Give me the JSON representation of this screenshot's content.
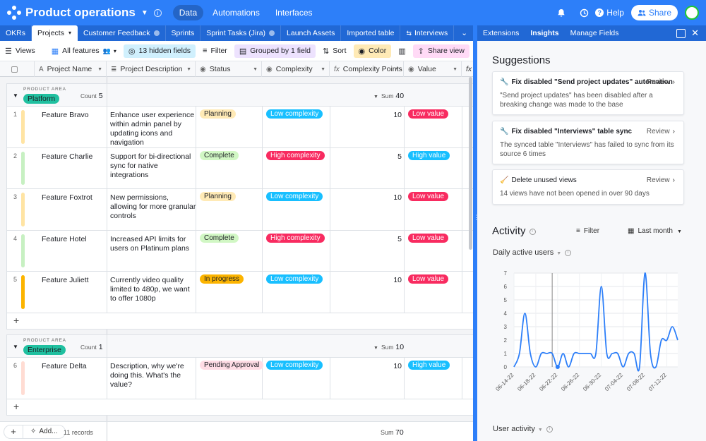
{
  "app": {
    "title": "Product operations",
    "nav": [
      "Data",
      "Automations",
      "Interfaces"
    ],
    "help_label": "Help",
    "share_label": "Share"
  },
  "tabs": [
    "OKRs",
    "Projects",
    "Customer Feedback",
    "Sprints",
    "Sprint Tasks (Jira)",
    "Launch Assets",
    "Imported table",
    "Interviews"
  ],
  "sidebar_tabs": [
    "Extensions",
    "Insights",
    "Manage Fields"
  ],
  "toolbar": {
    "views": "Views",
    "view_name": "All features",
    "hidden": "13 hidden fields",
    "filter": "Filter",
    "grouped": "Grouped by 1 field",
    "sort": "Sort",
    "color": "Color",
    "share_view": "Share view"
  },
  "columns": [
    "Project Name",
    "Project Description",
    "Status",
    "Complexity",
    "Complexity Points",
    "Value"
  ],
  "groups": [
    {
      "label": "PRODUCT AREA",
      "name": "Platform",
      "count_label": "Count",
      "count": "5",
      "sum_label": "Sum",
      "sum": "40",
      "rows": [
        {
          "num": "1",
          "name": "Feature Bravo",
          "desc": "Enhance user experience within admin panel by updating icons and navigation",
          "status": "Planning",
          "complexity": "Low complexity",
          "points": "10",
          "value": "Low value",
          "bar": "#ffe4a3"
        },
        {
          "num": "2",
          "name": "Feature Charlie",
          "desc": "Support for bi-directional sync for native integrations",
          "status": "Complete",
          "complexity": "High complexity",
          "points": "5",
          "value": "High value",
          "bar": "#c7f0c2"
        },
        {
          "num": "3",
          "name": "Feature Foxtrot",
          "desc": "New permissions, allowing for more granular controls",
          "status": "Planning",
          "complexity": "Low complexity",
          "points": "10",
          "value": "Low value",
          "bar": "#ffe4a3"
        },
        {
          "num": "4",
          "name": "Feature Hotel",
          "desc": "Increased API limits for users on Platinum plans",
          "status": "Complete",
          "complexity": "High complexity",
          "points": "5",
          "value": "Low value",
          "bar": "#c7f0c2"
        },
        {
          "num": "5",
          "name": "Feature Juliett",
          "desc": "Currently video quality limited to 480p, we want to offer 1080p",
          "status": "In progress",
          "complexity": "Low complexity",
          "points": "10",
          "value": "Low value",
          "bar": "#fcb400"
        }
      ]
    },
    {
      "label": "PRODUCT AREA",
      "name": "Enterprise",
      "count_label": "Count",
      "count": "1",
      "sum_label": "Sum",
      "sum": "10",
      "rows": [
        {
          "num": "6",
          "name": "Feature Delta",
          "desc": "Description, why we're doing this. What's the value?",
          "status": "Pending Approval",
          "complexity": "Low complexity",
          "points": "10",
          "value": "High value",
          "bar": "#ffdcd3"
        }
      ]
    }
  ],
  "footer": {
    "add_label": "Add...",
    "records": "11 records",
    "sum_label": "Sum",
    "sum": "70"
  },
  "colors": {
    "Planning": "#ffeab6",
    "Complete": "#d1f7c4",
    "In progress": "#fcb400",
    "Pending Approval": "#ffdce5",
    "Low complexity": "#18bfff",
    "High complexity": "#f82b60",
    "Low value": "#f82b60",
    "High value": "#18bfff"
  },
  "suggestions": {
    "title": "Suggestions",
    "items": [
      {
        "title": "Fix disabled \"Send project updates\" automation",
        "action": "Review",
        "body": "\"Send project updates\" has been disabled after a breaking change was made to the base",
        "icon": "wrench-icon"
      },
      {
        "title": "Fix disabled \"Interviews\" table sync",
        "action": "Review",
        "body": "The synced table \"Interviews\" has failed to sync from its source 6 times",
        "icon": "wrench-icon"
      },
      {
        "title": "Delete unused views",
        "action": "Review",
        "body": "14 views have not been opened in over 90 days",
        "icon": "broom-icon"
      }
    ]
  },
  "activity": {
    "title": "Activity",
    "filter": "Filter",
    "range": "Last month",
    "dau_title": "Daily active users",
    "user_activity_title": "User activity"
  },
  "chart_data": {
    "type": "line",
    "title": "Daily active users",
    "x_ticks": [
      "06-14-22",
      "06-18-22",
      "06-22-22",
      "06-26-22",
      "06-30-22",
      "07-04-22",
      "07-08-22",
      "07-12-22"
    ],
    "x": [
      "06-14-22",
      "06-15-22",
      "06-16-22",
      "06-17-22",
      "06-18-22",
      "06-19-22",
      "06-20-22",
      "06-21-22",
      "06-22-22",
      "06-23-22",
      "06-24-22",
      "06-25-22",
      "06-26-22",
      "06-27-22",
      "06-28-22",
      "06-29-22",
      "06-30-22",
      "07-01-22",
      "07-02-22",
      "07-03-22",
      "07-04-22",
      "07-05-22",
      "07-06-22",
      "07-07-22",
      "07-08-22",
      "07-09-22",
      "07-10-22",
      "07-11-22",
      "07-12-22",
      "07-13-22",
      "07-14-22"
    ],
    "values": [
      0,
      1,
      4,
      1,
      0,
      1,
      1,
      1,
      0,
      1,
      0,
      1,
      1,
      1,
      1,
      1,
      6,
      1,
      1,
      1,
      0,
      1,
      1,
      0,
      7,
      1,
      0,
      2,
      2,
      3,
      2
    ],
    "ylim": [
      0,
      7
    ],
    "y_ticks": [
      0,
      1,
      2,
      3,
      4,
      5,
      6,
      7
    ],
    "grid": true,
    "color": "#2d7ff9"
  }
}
